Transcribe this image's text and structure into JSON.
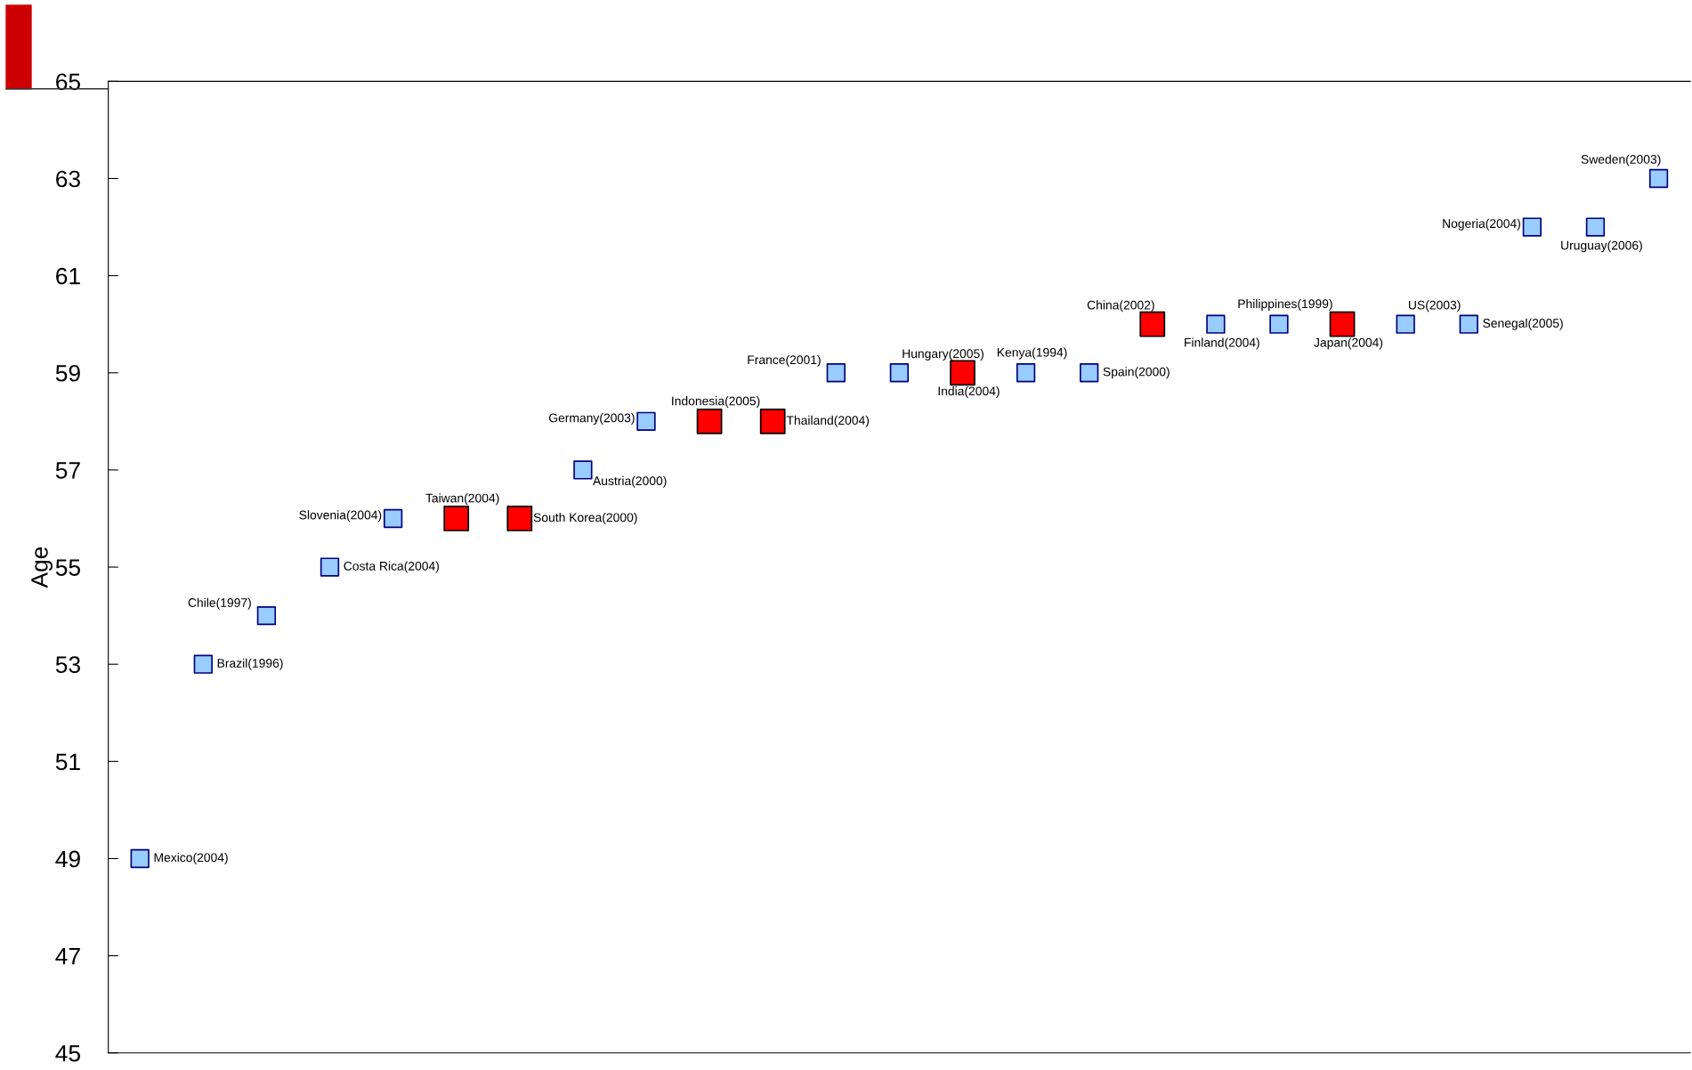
{
  "chart_data": {
    "type": "scatter",
    "ylabel": "Age",
    "categories": [
      null,
      null,
      null,
      null,
      null,
      null,
      null,
      null,
      null,
      null,
      null,
      null,
      null,
      null,
      null,
      null,
      null,
      null,
      null,
      null,
      null,
      null,
      null,
      null,
      null
    ],
    "series": [
      {
        "color": "#99ccff",
        "values": [
          49,
          53,
          54,
          55,
          56,
          null,
          null,
          57,
          58,
          null,
          null,
          59,
          59,
          null,
          59,
          59,
          null,
          60,
          60,
          null,
          60,
          60,
          62,
          62,
          63
        ],
        "value_labels": [
          "Mexico(2004)",
          "Brazil(1996)",
          "Chile(1997)",
          "Costa Rica(2004)",
          "Slovenia(2004)",
          null,
          null,
          "Austria(2000)",
          "Germany(2003)",
          null,
          null,
          "France(2001)",
          "Hungary(2005)",
          null,
          "Kenya(1994)",
          "Spain(2000)",
          null,
          "Finland(2004)",
          "Philippines(1999)",
          null,
          "US(2003)",
          "Senegal(2005)",
          "Nogeria(2004)",
          "Uruguay(2006)",
          "Sweden(2003)"
        ]
      },
      {
        "color": "#ff0000",
        "values": [
          null,
          null,
          null,
          null,
          null,
          56,
          56,
          null,
          null,
          58,
          58,
          null,
          null,
          59,
          null,
          null,
          60,
          null,
          null,
          60,
          null,
          null,
          null,
          null,
          null
        ],
        "value_labels": [
          null,
          null,
          null,
          null,
          null,
          "Taiwan(2004)",
          "South Korea(2000)",
          null,
          null,
          "Indonesia(2005)",
          "Thailand(2004)",
          null,
          null,
          "India(2004)",
          null,
          null,
          "China(2002)",
          null,
          null,
          "Japan(2004)",
          null,
          null,
          null,
          null,
          null
        ]
      }
    ],
    "ylim": [
      45,
      65
    ],
    "yticks": [
      45,
      47,
      49,
      51,
      53,
      55,
      57,
      59,
      61,
      63,
      65
    ],
    "tick_labels": "y",
    "marker": "square",
    "grid": false,
    "legend": false
  }
}
